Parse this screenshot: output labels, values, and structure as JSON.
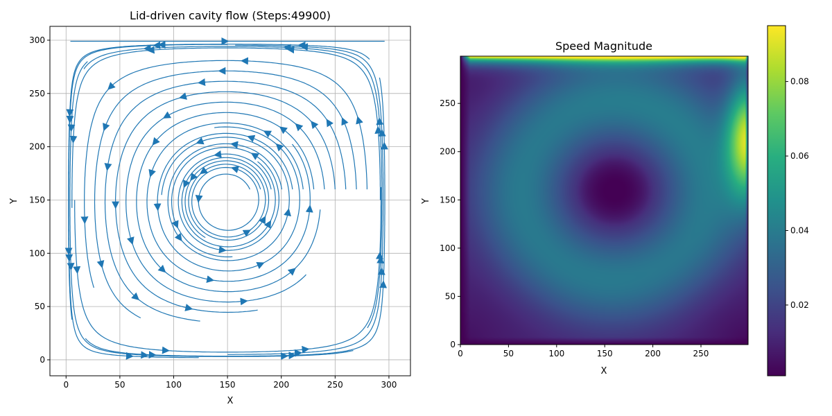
{
  "chart_data": [
    {
      "type": "streamplot",
      "title": "Lid-driven cavity flow (Steps:49900)",
      "xlabel": "X",
      "ylabel": "Y",
      "xlim": [
        -15,
        320
      ],
      "ylim": [
        -15,
        313
      ],
      "xticks": [
        0,
        50,
        100,
        150,
        200,
        250,
        300
      ],
      "yticks": [
        0,
        50,
        100,
        150,
        200,
        250,
        300
      ],
      "grid": true,
      "color": "#1f77b4",
      "vortex_center": [
        160,
        160
      ],
      "lid": {
        "y": 299,
        "direction": "+x"
      }
    },
    {
      "type": "heatmap",
      "title": "Speed Magnitude",
      "xlabel": "X",
      "ylabel": "Y",
      "xlim": [
        0,
        299
      ],
      "ylim": [
        0,
        299
      ],
      "xticks": [
        0,
        50,
        100,
        150,
        200,
        250
      ],
      "yticks": [
        0,
        50,
        100,
        150,
        200,
        250
      ],
      "colormap": "viridis",
      "colorbar": {
        "range": [
          0.001,
          0.095
        ],
        "ticks": [
          0.02,
          0.04,
          0.06,
          0.08
        ],
        "tick_labels": [
          "0.02",
          "0.04",
          "0.06",
          "0.08"
        ]
      },
      "features": {
        "vortex_core_minimum": [
          160,
          160
        ],
        "lid_maximum_y": 299,
        "right_wall_jet_peak": 0.07,
        "ring_speed": 0.04
      }
    }
  ]
}
